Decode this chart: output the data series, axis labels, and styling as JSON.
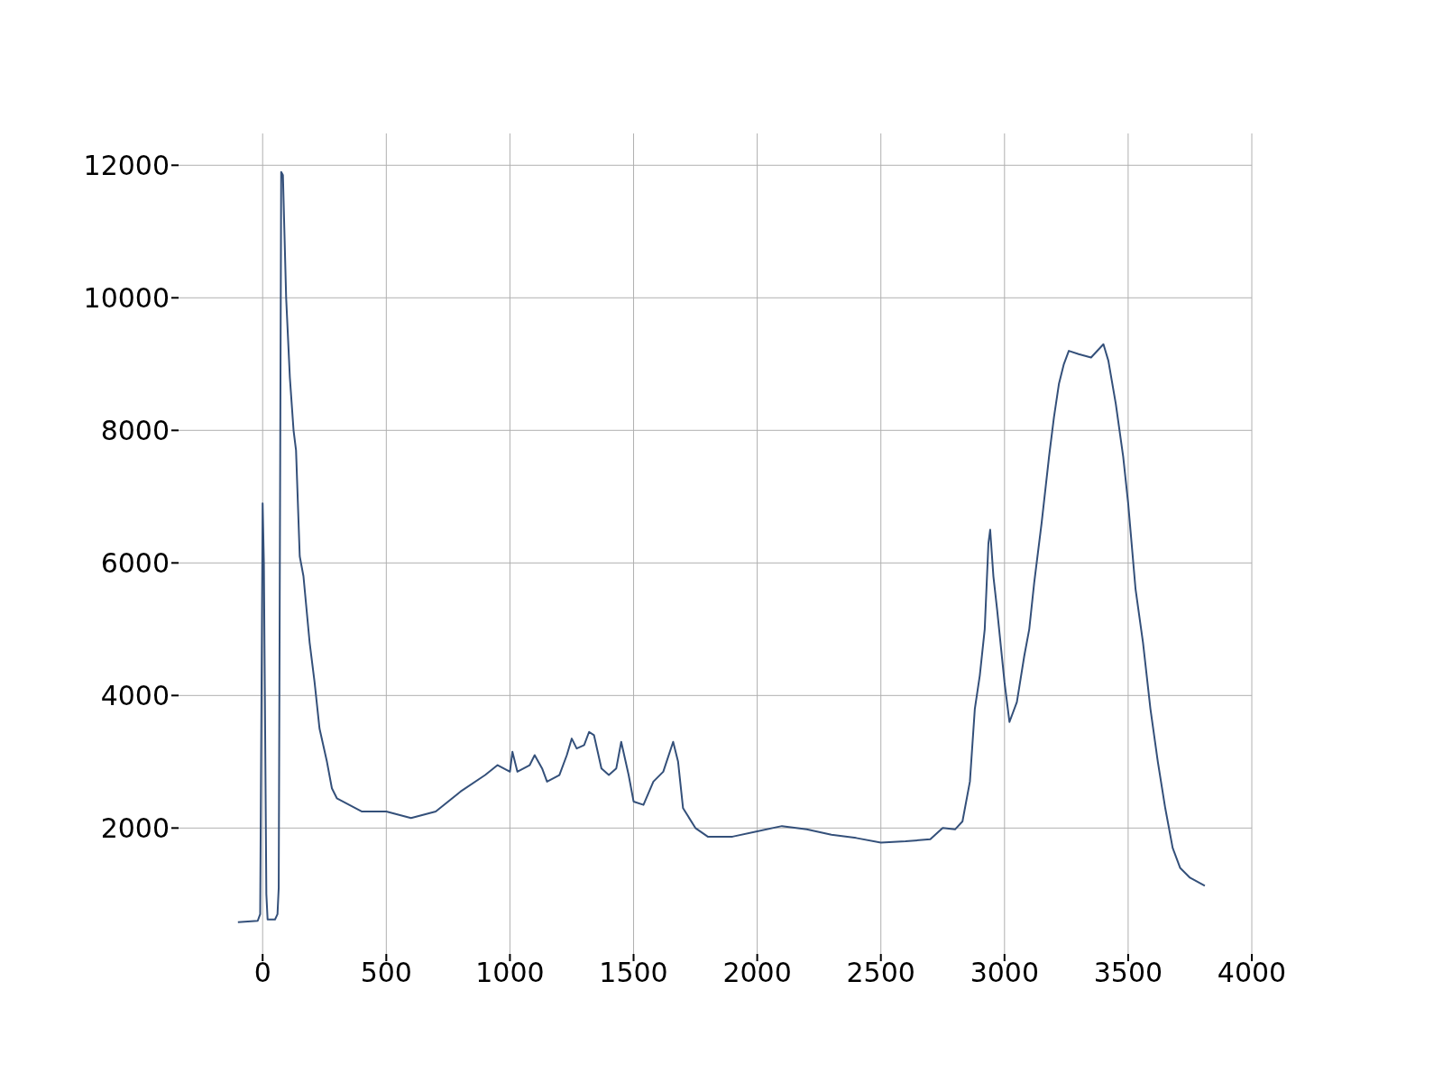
{
  "chart_data": {
    "type": "line",
    "x": [
      -100,
      -20,
      -10,
      0,
      5,
      15,
      20,
      50,
      60,
      65,
      75,
      82,
      95,
      110,
      125,
      135,
      150,
      165,
      190,
      210,
      230,
      260,
      280,
      300,
      350,
      400,
      500,
      600,
      700,
      800,
      900,
      950,
      1000,
      1010,
      1030,
      1080,
      1100,
      1130,
      1150,
      1200,
      1230,
      1250,
      1270,
      1300,
      1320,
      1340,
      1370,
      1400,
      1430,
      1450,
      1480,
      1500,
      1540,
      1580,
      1620,
      1660,
      1680,
      1700,
      1750,
      1800,
      1900,
      2000,
      2100,
      2200,
      2300,
      2400,
      2500,
      2600,
      2700,
      2750,
      2800,
      2830,
      2860,
      2880,
      2900,
      2920,
      2935,
      2942,
      2955,
      2970,
      3000,
      3020,
      3050,
      3080,
      3100,
      3120,
      3150,
      3180,
      3200,
      3220,
      3240,
      3260,
      3300,
      3350,
      3400,
      3420,
      3450,
      3480,
      3500,
      3530,
      3560,
      3590,
      3620,
      3650,
      3680,
      3710,
      3750,
      3810
    ],
    "series": [
      {
        "color": "#34507a",
        "values": [
          580,
          600,
          700,
          6900,
          6000,
          1000,
          620,
          620,
          700,
          1100,
          11900,
          11850,
          10000,
          8800,
          8000,
          7700,
          6100,
          5800,
          4800,
          4200,
          3500,
          3000,
          2600,
          2450,
          2350,
          2250,
          2250,
          2150,
          2250,
          2550,
          2800,
          2950,
          2850,
          3150,
          2850,
          2950,
          3100,
          2900,
          2700,
          2800,
          3100,
          3350,
          3200,
          3250,
          3450,
          3400,
          2900,
          2800,
          2900,
          3300,
          2800,
          2400,
          2350,
          2700,
          2850,
          3300,
          3000,
          2300,
          2000,
          1870,
          1870,
          1950,
          2030,
          1980,
          1900,
          1850,
          1780,
          1800,
          1830,
          2000,
          1980,
          2100,
          2700,
          3800,
          4300,
          5000,
          6300,
          6500,
          5800,
          5300,
          4200,
          3600,
          3900,
          4600,
          5000,
          5700,
          6600,
          7600,
          8200,
          8700,
          9000,
          9200,
          9150,
          9100,
          9300,
          9050,
          8400,
          7600,
          6900,
          5600,
          4800,
          3800,
          3000,
          2300,
          1700,
          1400,
          1250,
          1130
        ]
      }
    ],
    "xlim": [
      -340,
      4000
    ],
    "ylim": [
      100,
      12480
    ],
    "xticks": [
      0,
      500,
      1000,
      1500,
      2000,
      2500,
      3000,
      3500,
      4000
    ],
    "yticks": [
      2000,
      4000,
      6000,
      8000,
      10000,
      12000
    ],
    "grid": true,
    "marker": "none",
    "line_style": "solid"
  }
}
